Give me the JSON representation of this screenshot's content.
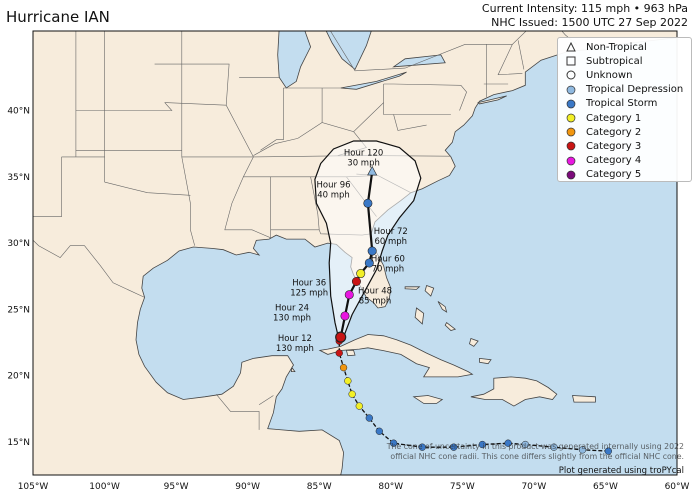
{
  "title": "Hurricane IAN",
  "intensity_line": "Current Intensity: 115 mph • 963 hPa",
  "issued_line": "NHC Issued: 1500 UTC 27 Sep 2022",
  "colors": {
    "ocean": "#c3ddef",
    "land": "#f7ecdc",
    "border": "#555555",
    "cone": "#ffffff",
    "track": "#111111",
    "tropical_depression": "#8fb9e0",
    "tropical_storm": "#3a78c6",
    "category_1": "#f2ef27",
    "category_2": "#f1960f",
    "category_3": "#c81414",
    "category_4": "#e817e0",
    "category_5": "#7b0a7b"
  },
  "map": {
    "lon_range": [
      -105,
      -60
    ],
    "lat_range": [
      12.5,
      46
    ],
    "lon_ticks": [
      "105°W",
      "100°W",
      "95°W",
      "90°W",
      "85°W",
      "80°W",
      "75°W",
      "70°W",
      "65°W",
      "60°W"
    ],
    "lat_ticks": [
      "15°N",
      "20°N",
      "25°N",
      "30°N",
      "35°N",
      "40°N"
    ]
  },
  "legend": [
    {
      "label": "Non-Tropical",
      "icon": "triangle-icon"
    },
    {
      "label": "Subtropical",
      "icon": "square-icon"
    },
    {
      "label": "Unknown",
      "icon": "circle-outline-icon"
    },
    {
      "label": "Tropical Depression",
      "icon": "circle-icon",
      "color": "#8fb9e0"
    },
    {
      "label": "Tropical Storm",
      "icon": "circle-icon",
      "color": "#3a78c6"
    },
    {
      "label": "Category 1",
      "icon": "circle-icon",
      "color": "#f2ef27"
    },
    {
      "label": "Category 2",
      "icon": "circle-icon",
      "color": "#f1960f"
    },
    {
      "label": "Category 3",
      "icon": "circle-icon",
      "color": "#c81414"
    },
    {
      "label": "Category 4",
      "icon": "circle-icon",
      "color": "#e817e0"
    },
    {
      "label": "Category 5",
      "icon": "circle-icon",
      "color": "#7b0a7b"
    }
  ],
  "past_track": [
    {
      "lon": -64.8,
      "lat": 14.3,
      "category": "tropical_storm"
    },
    {
      "lon": -66.6,
      "lat": 14.4,
      "category": "tropical_depression"
    },
    {
      "lon": -68.6,
      "lat": 14.6,
      "category": "tropical_depression"
    },
    {
      "lon": -70.6,
      "lat": 14.8,
      "category": "tropical_depression"
    },
    {
      "lon": -71.8,
      "lat": 14.9,
      "category": "tropical_storm"
    },
    {
      "lon": -73.6,
      "lat": 14.8,
      "category": "tropical_storm"
    },
    {
      "lon": -75.6,
      "lat": 14.6,
      "category": "tropical_storm"
    },
    {
      "lon": -77.8,
      "lat": 14.6,
      "category": "tropical_storm"
    },
    {
      "lon": -79.8,
      "lat": 14.9,
      "category": "tropical_storm"
    },
    {
      "lon": -80.8,
      "lat": 15.8,
      "category": "tropical_storm"
    },
    {
      "lon": -81.5,
      "lat": 16.8,
      "category": "tropical_storm"
    },
    {
      "lon": -82.2,
      "lat": 17.7,
      "category": "category_1"
    },
    {
      "lon": -82.7,
      "lat": 18.6,
      "category": "category_1"
    },
    {
      "lon": -83.0,
      "lat": 19.6,
      "category": "category_1"
    },
    {
      "lon": -83.3,
      "lat": 20.6,
      "category": "category_2"
    },
    {
      "lon": -83.6,
      "lat": 21.7,
      "category": "category_3"
    },
    {
      "lon": -83.6,
      "lat": 22.6,
      "category": "category_3"
    }
  ],
  "forecast_track": [
    {
      "lon": -83.5,
      "lat": 22.9,
      "category": "category_3"
    },
    {
      "lon": -83.2,
      "lat": 24.5,
      "category": "category_4"
    },
    {
      "lon": -82.9,
      "lat": 26.1,
      "category": "category_4"
    },
    {
      "lon": -82.4,
      "lat": 27.1,
      "category": "category_3"
    },
    {
      "lon": -82.1,
      "lat": 27.7,
      "category": "category_1"
    },
    {
      "lon": -81.5,
      "lat": 28.5,
      "category": "tropical_storm"
    },
    {
      "lon": -81.3,
      "lat": 29.4,
      "category": "tropical_storm"
    },
    {
      "lon": -81.6,
      "lat": 33.0,
      "category": "tropical_storm"
    },
    {
      "lon": -81.3,
      "lat": 35.4,
      "category": "tropical_depression"
    }
  ],
  "forecast_labels": [
    {
      "text": [
        "Hour 12",
        "130 mph"
      ],
      "lon": -86.7,
      "lat": 22.6
    },
    {
      "text": [
        "Hour 24",
        "130 mph"
      ],
      "lon": -86.9,
      "lat": 24.9
    },
    {
      "text": [
        "Hour 36",
        "125 mph"
      ],
      "lon": -85.7,
      "lat": 26.8
    },
    {
      "text": [
        "Hour 48",
        "85 mph"
      ],
      "lon": -81.1,
      "lat": 26.2
    },
    {
      "text": [
        "Hour 60",
        "70 mph"
      ],
      "lon": -80.2,
      "lat": 28.6
    },
    {
      "text": [
        "Hour 72",
        "60 mph"
      ],
      "lon": -80.0,
      "lat": 30.7
    },
    {
      "text": [
        "Hour 96",
        "40 mph"
      ],
      "lon": -84.0,
      "lat": 34.2
    },
    {
      "text": [
        "Hour 120",
        "30 mph"
      ],
      "lon": -81.9,
      "lat": 36.6
    }
  ],
  "cone_notice": "The cone of uncertainty in this product was generated internally using 2022 official NHC cone radii. This cone differs slightly from the official NHC cone.",
  "credit": "Plot generated using troPYcal"
}
